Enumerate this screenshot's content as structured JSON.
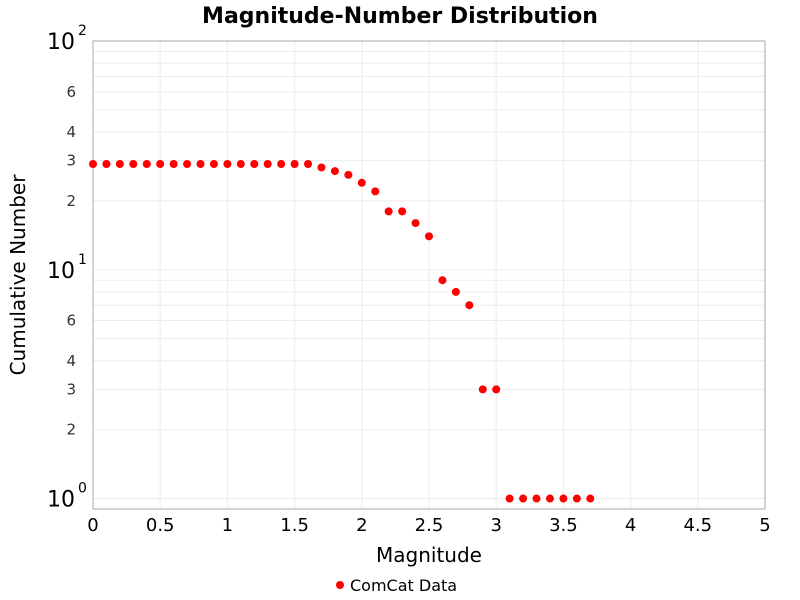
{
  "chart_data": {
    "type": "scatter",
    "title": "Magnitude-Number Distribution",
    "xlabel": "Magnitude",
    "ylabel": "Cumulative Number",
    "xlim": [
      0,
      5
    ],
    "ylim": [
      0.9,
      100
    ],
    "yscale": "log",
    "grid": true,
    "legend_position": "bottom",
    "x_ticks": [
      "0",
      "0.5",
      "1",
      "1.5",
      "2",
      "2.5",
      "3",
      "3.5",
      "4",
      "4.5",
      "5"
    ],
    "y_major_ticks": [
      {
        "base": "10",
        "exp": "0"
      },
      {
        "base": "10",
        "exp": "1"
      },
      {
        "base": "10",
        "exp": "2"
      }
    ],
    "y_minor_tick_labels": [
      "2",
      "3",
      "4",
      "6"
    ],
    "series": [
      {
        "name": "ComCat Data",
        "color": "#ff0000",
        "x": [
          0,
          0.1,
          0.2,
          0.3,
          0.4,
          0.5,
          0.6,
          0.7,
          0.8,
          0.9,
          1.0,
          1.1,
          1.2,
          1.3,
          1.4,
          1.5,
          1.6,
          1.7,
          1.8,
          1.9,
          2.0,
          2.1,
          2.2,
          2.3,
          2.4,
          2.5,
          2.6,
          2.7,
          2.8,
          2.9,
          3.0,
          3.1,
          3.2,
          3.3,
          3.4,
          3.5,
          3.6,
          3.7
        ],
        "y": [
          29,
          29,
          29,
          29,
          29,
          29,
          29,
          29,
          29,
          29,
          29,
          29,
          29,
          29,
          29,
          29,
          29,
          28,
          27,
          26,
          24,
          22,
          18,
          18,
          16,
          14,
          9,
          8,
          7,
          3,
          3,
          1,
          1,
          1,
          1,
          1,
          1,
          1
        ]
      }
    ]
  }
}
